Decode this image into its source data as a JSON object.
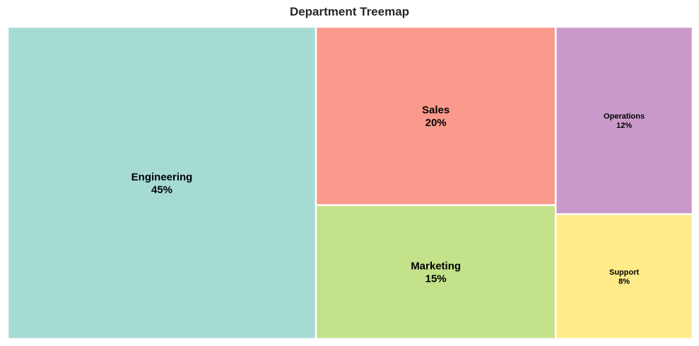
{
  "chart_data": {
    "type": "treemap",
    "title": "Department Treemap",
    "categories": [
      "Engineering",
      "Sales",
      "Marketing",
      "Operations",
      "Support"
    ],
    "values": [
      45,
      20,
      15,
      12,
      8
    ],
    "labels": [
      "45%",
      "20%",
      "15%",
      "12%",
      "8%"
    ],
    "colors": [
      "#a6dbd4",
      "#f99a8c",
      "#c4e28a",
      "#c99ac9",
      "#ffeb8a"
    ]
  }
}
